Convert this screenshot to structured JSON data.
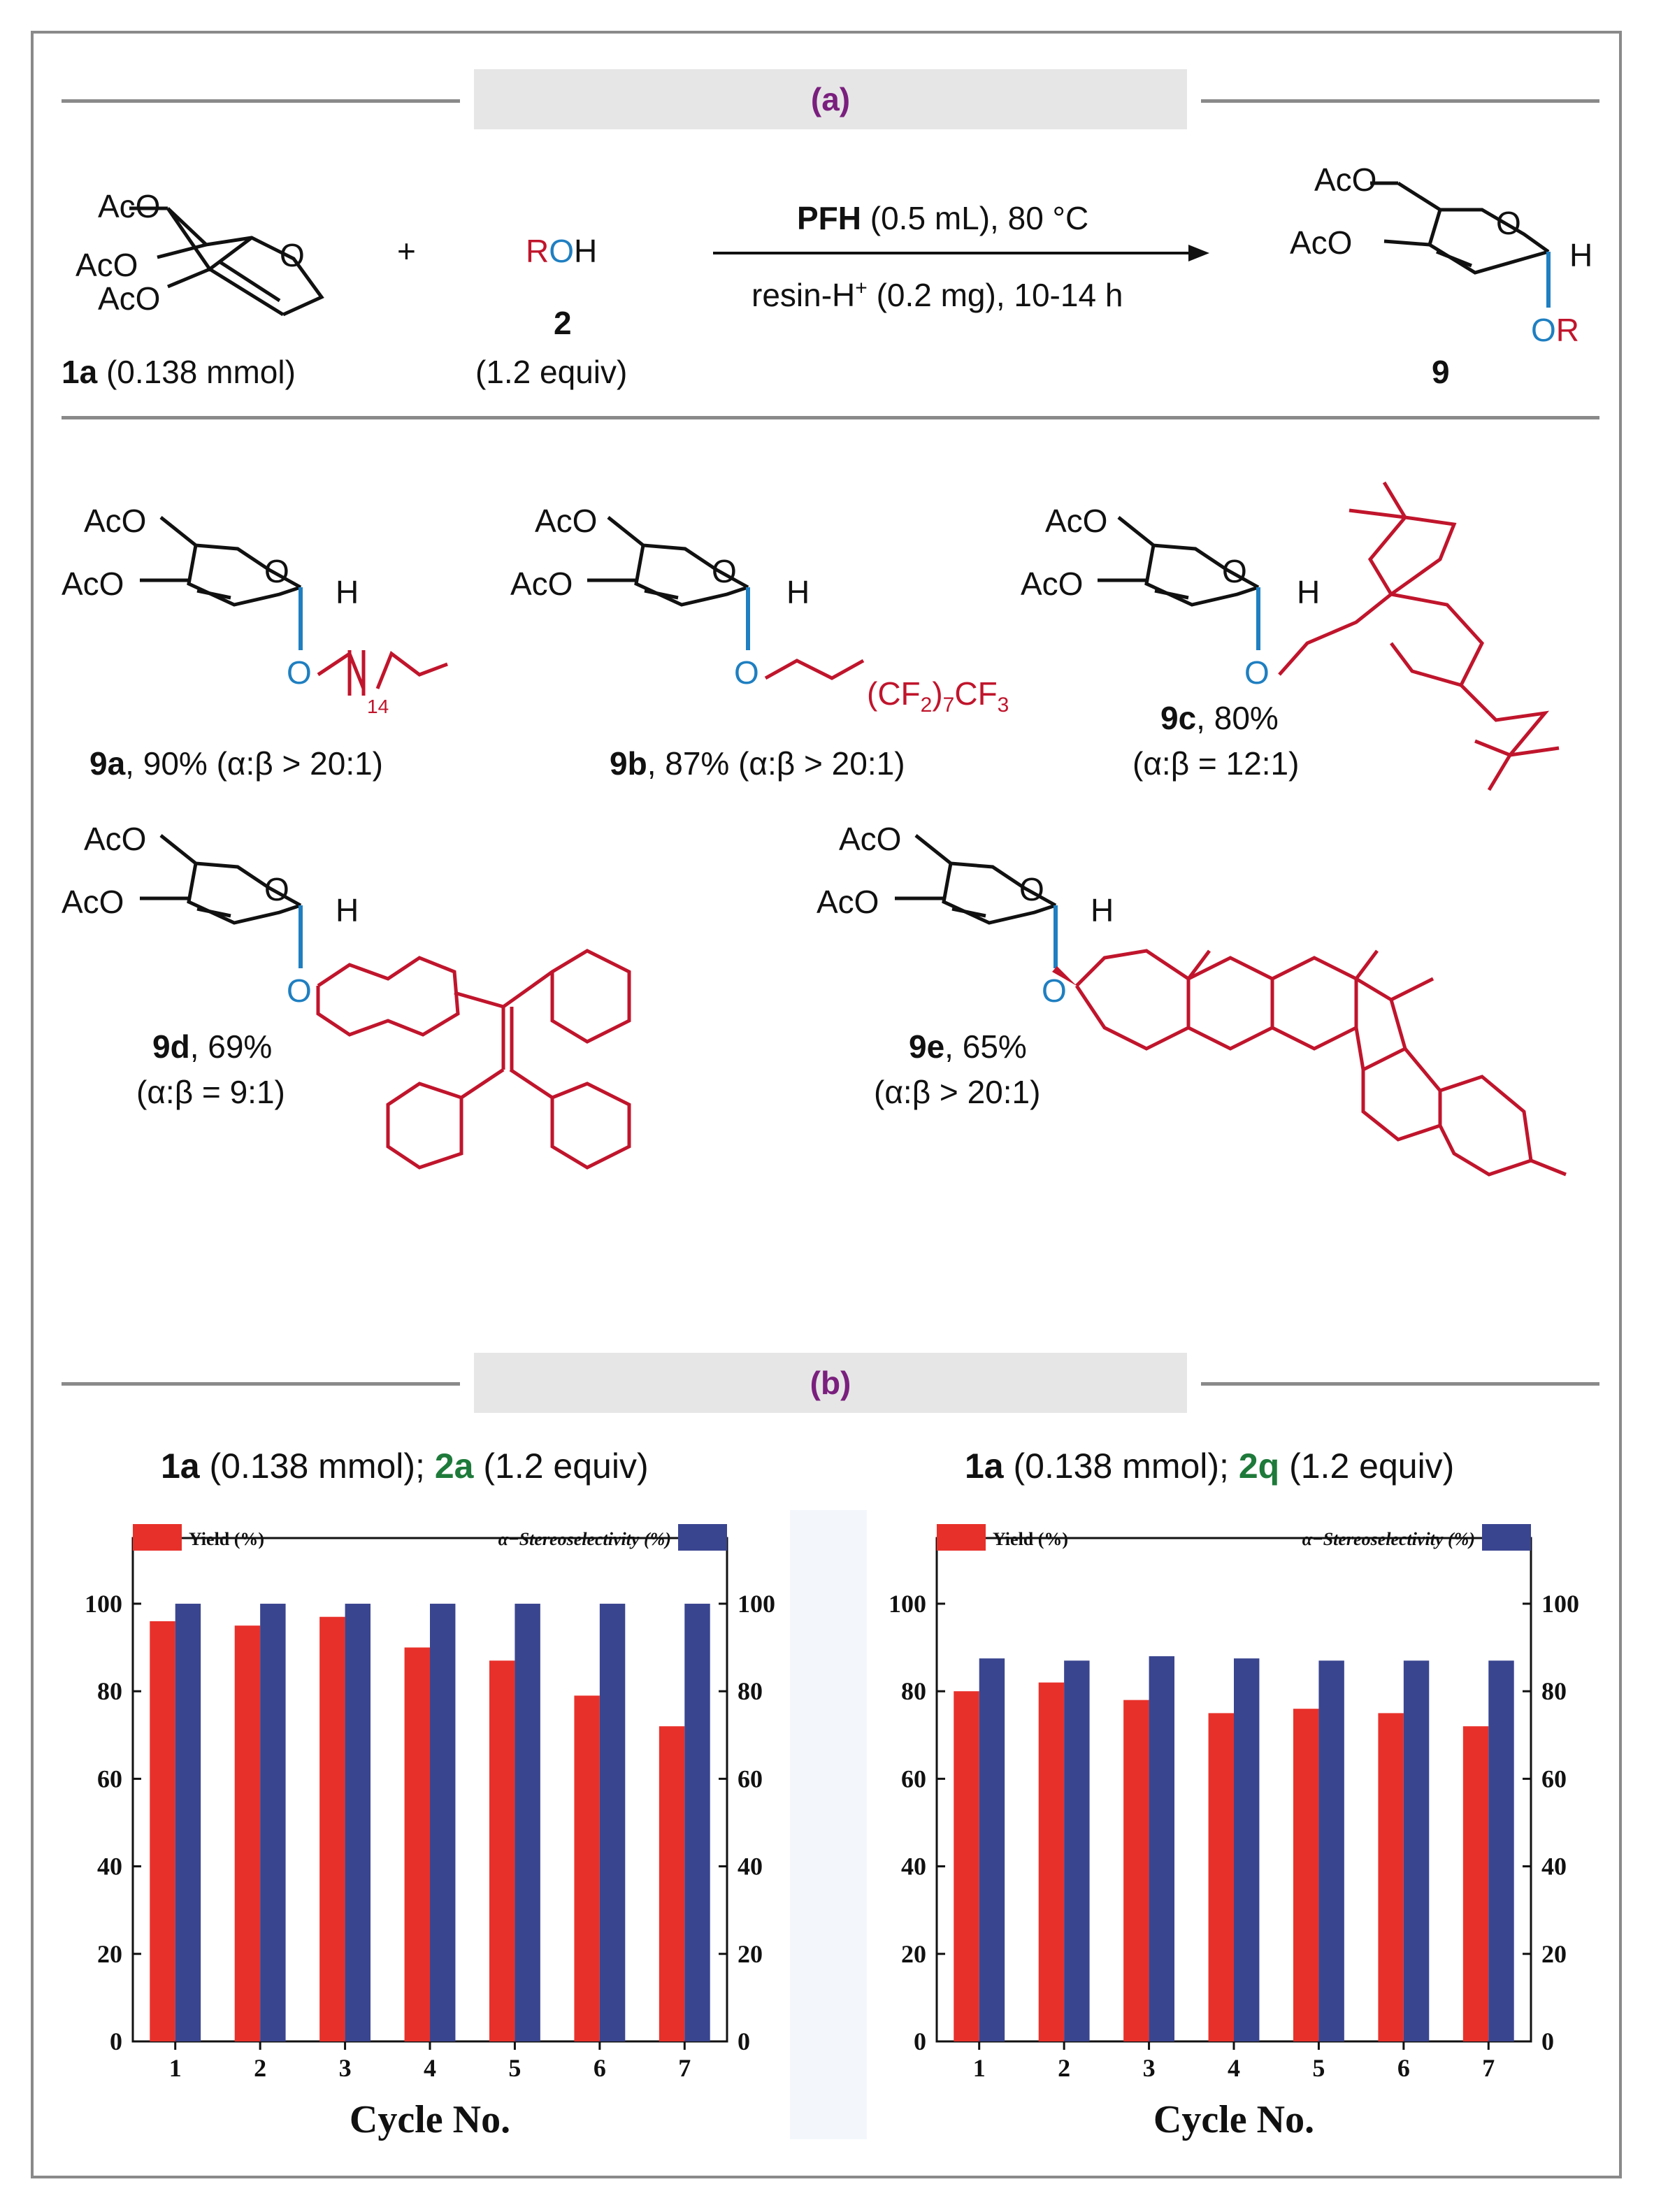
{
  "colors": {
    "yield": "#e8302a",
    "selectivity": "#3a4590",
    "product_red": "#c0152c",
    "bond_blue": "#1f7fc1",
    "banner_text": "#7a1f7e",
    "green": "#1e7a3a"
  },
  "section_a": {
    "label": "(a)",
    "reactant_1a": {
      "substituent_top": "AcO",
      "substituent_mid": "AcO",
      "substituent_bot": "AcO",
      "ring_o": "O",
      "id": "1a",
      "amount": "(0.138 mmol)"
    },
    "plus": "+",
    "reagent_2": {
      "r": "R",
      "o": "O",
      "h": "H",
      "id": "2",
      "amount": "(1.2 equiv)"
    },
    "arrow_top": {
      "bold": "PFH",
      "rest": "(0.5 mL), 80 °C"
    },
    "arrow_bottom": {
      "pre": "resin-H",
      "sup": "+",
      "post": "(0.2 mg), 10-14 h"
    },
    "product_9": {
      "acO_top": "AcO",
      "acO_mid": "AcO",
      "ring_o": "O",
      "h": "H",
      "o": "O",
      "r": "R",
      "id": "9"
    }
  },
  "products": [
    {
      "id": "9a",
      "yield_text": ", 90% (α:β > 20:1)",
      "chain_sub": "14"
    },
    {
      "id": "9b",
      "yield_text": ", 87% (α:β > 20:1)",
      "chain": "(CF",
      "sub1": "2",
      "chain2": ")",
      "sub2": "7",
      "chain3": "CF",
      "sub3": "3"
    },
    {
      "id": "9c",
      "yield_text": ", 80%",
      "ratio": "(α:β = 12:1)"
    },
    {
      "id": "9d",
      "yield_text": ", 69%",
      "ratio": "(α:β = 9:1)"
    },
    {
      "id": "9e",
      "yield_text": ", 65%",
      "ratio": "(α:β > 20:1)"
    }
  ],
  "generic_labels": {
    "aco": "AcO",
    "o": "O",
    "h": "H"
  },
  "section_b": {
    "label": "(b)"
  },
  "chart_data": [
    {
      "type": "bar",
      "title_parts": {
        "a": "1a",
        "mid": " (0.138 mmol); ",
        "b": "2a",
        "end": " (1.2 equiv)"
      },
      "categories": [
        "1",
        "2",
        "3",
        "4",
        "5",
        "6",
        "7"
      ],
      "series": [
        {
          "name": "Yield (%)",
          "values": [
            96,
            95,
            97,
            90,
            87,
            79,
            72
          ]
        },
        {
          "name": "α−Stereoselectivity (%)",
          "values": [
            100,
            100,
            100,
            100,
            100,
            100,
            100
          ]
        }
      ],
      "xlabel": "Cycle No.",
      "ylim": [
        0,
        115
      ],
      "yticks": [
        "0",
        "20",
        "40",
        "60",
        "80",
        "100"
      ],
      "legend": "top"
    },
    {
      "type": "bar",
      "title_parts": {
        "a": "1a",
        "mid": " (0.138 mmol); ",
        "b": "2q",
        "end": " (1.2 equiv)"
      },
      "categories": [
        "1",
        "2",
        "3",
        "4",
        "5",
        "6",
        "7"
      ],
      "series": [
        {
          "name": "Yield (%)",
          "values": [
            80,
            82,
            78,
            75,
            76,
            75,
            72
          ]
        },
        {
          "name": "α−Stereoselectivity (%)",
          "values": [
            87.5,
            87,
            88,
            87.5,
            87,
            87,
            87
          ]
        }
      ],
      "xlabel": "Cycle No.",
      "ylim": [
        0,
        115
      ],
      "yticks": [
        "0",
        "20",
        "40",
        "60",
        "80",
        "100"
      ],
      "legend": "top"
    }
  ]
}
